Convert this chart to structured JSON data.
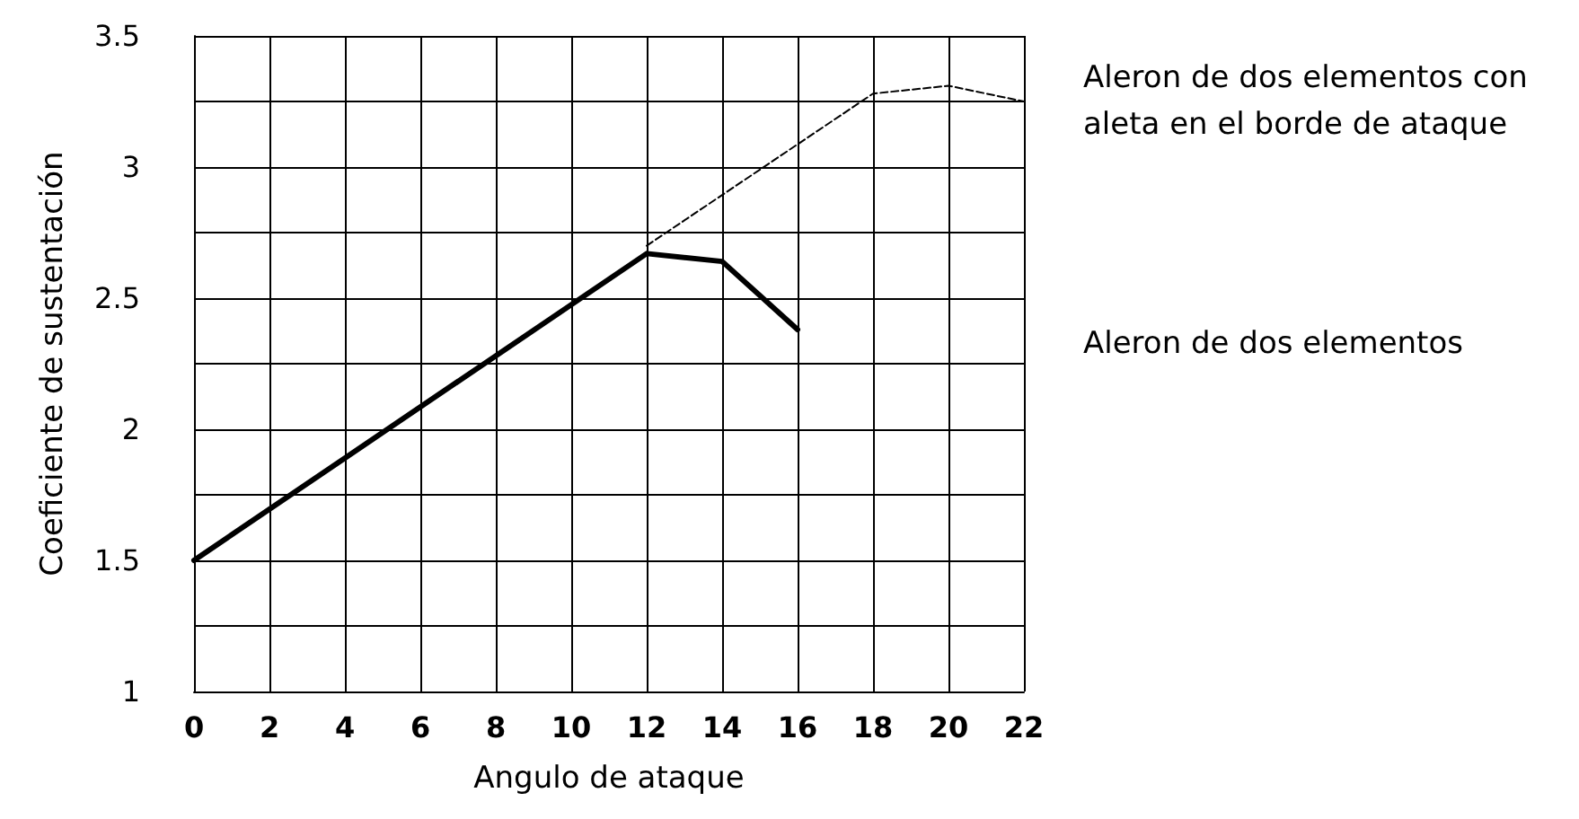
{
  "chart_data": {
    "type": "line",
    "xlabel": "Angulo de ataque",
    "ylabel": "Coeficiente de sustentación",
    "xlim": [
      0,
      22
    ],
    "xticks": [
      0,
      2,
      4,
      6,
      8,
      10,
      12,
      14,
      16,
      18,
      20,
      22
    ],
    "ylim": [
      1,
      3.5
    ],
    "yticks": [
      1,
      {
        "value": 1.25,
        "label": null
      },
      1.5,
      {
        "value": 1.75,
        "label": null
      },
      2,
      {
        "value": 2.25,
        "label": null
      },
      2.5,
      {
        "value": 2.75,
        "label": null
      },
      3,
      {
        "value": 3.25,
        "label": null
      },
      3.5
    ],
    "grid": true,
    "marker": "none",
    "legend": false,
    "series": [
      {
        "name": "Aleron de dos elementos con aleta en el borde de ataque",
        "color": "#000000",
        "line_style": "dashed",
        "x": [
          12,
          18,
          20,
          22
        ],
        "values": [
          2.7,
          3.28,
          3.31,
          3.25
        ]
      },
      {
        "name": "Aleron de dos elementos",
        "color": "#000000",
        "line_style": "solid",
        "x": [
          0,
          12,
          14,
          16
        ],
        "values": [
          1.5,
          2.67,
          2.64,
          2.38
        ]
      }
    ]
  }
}
